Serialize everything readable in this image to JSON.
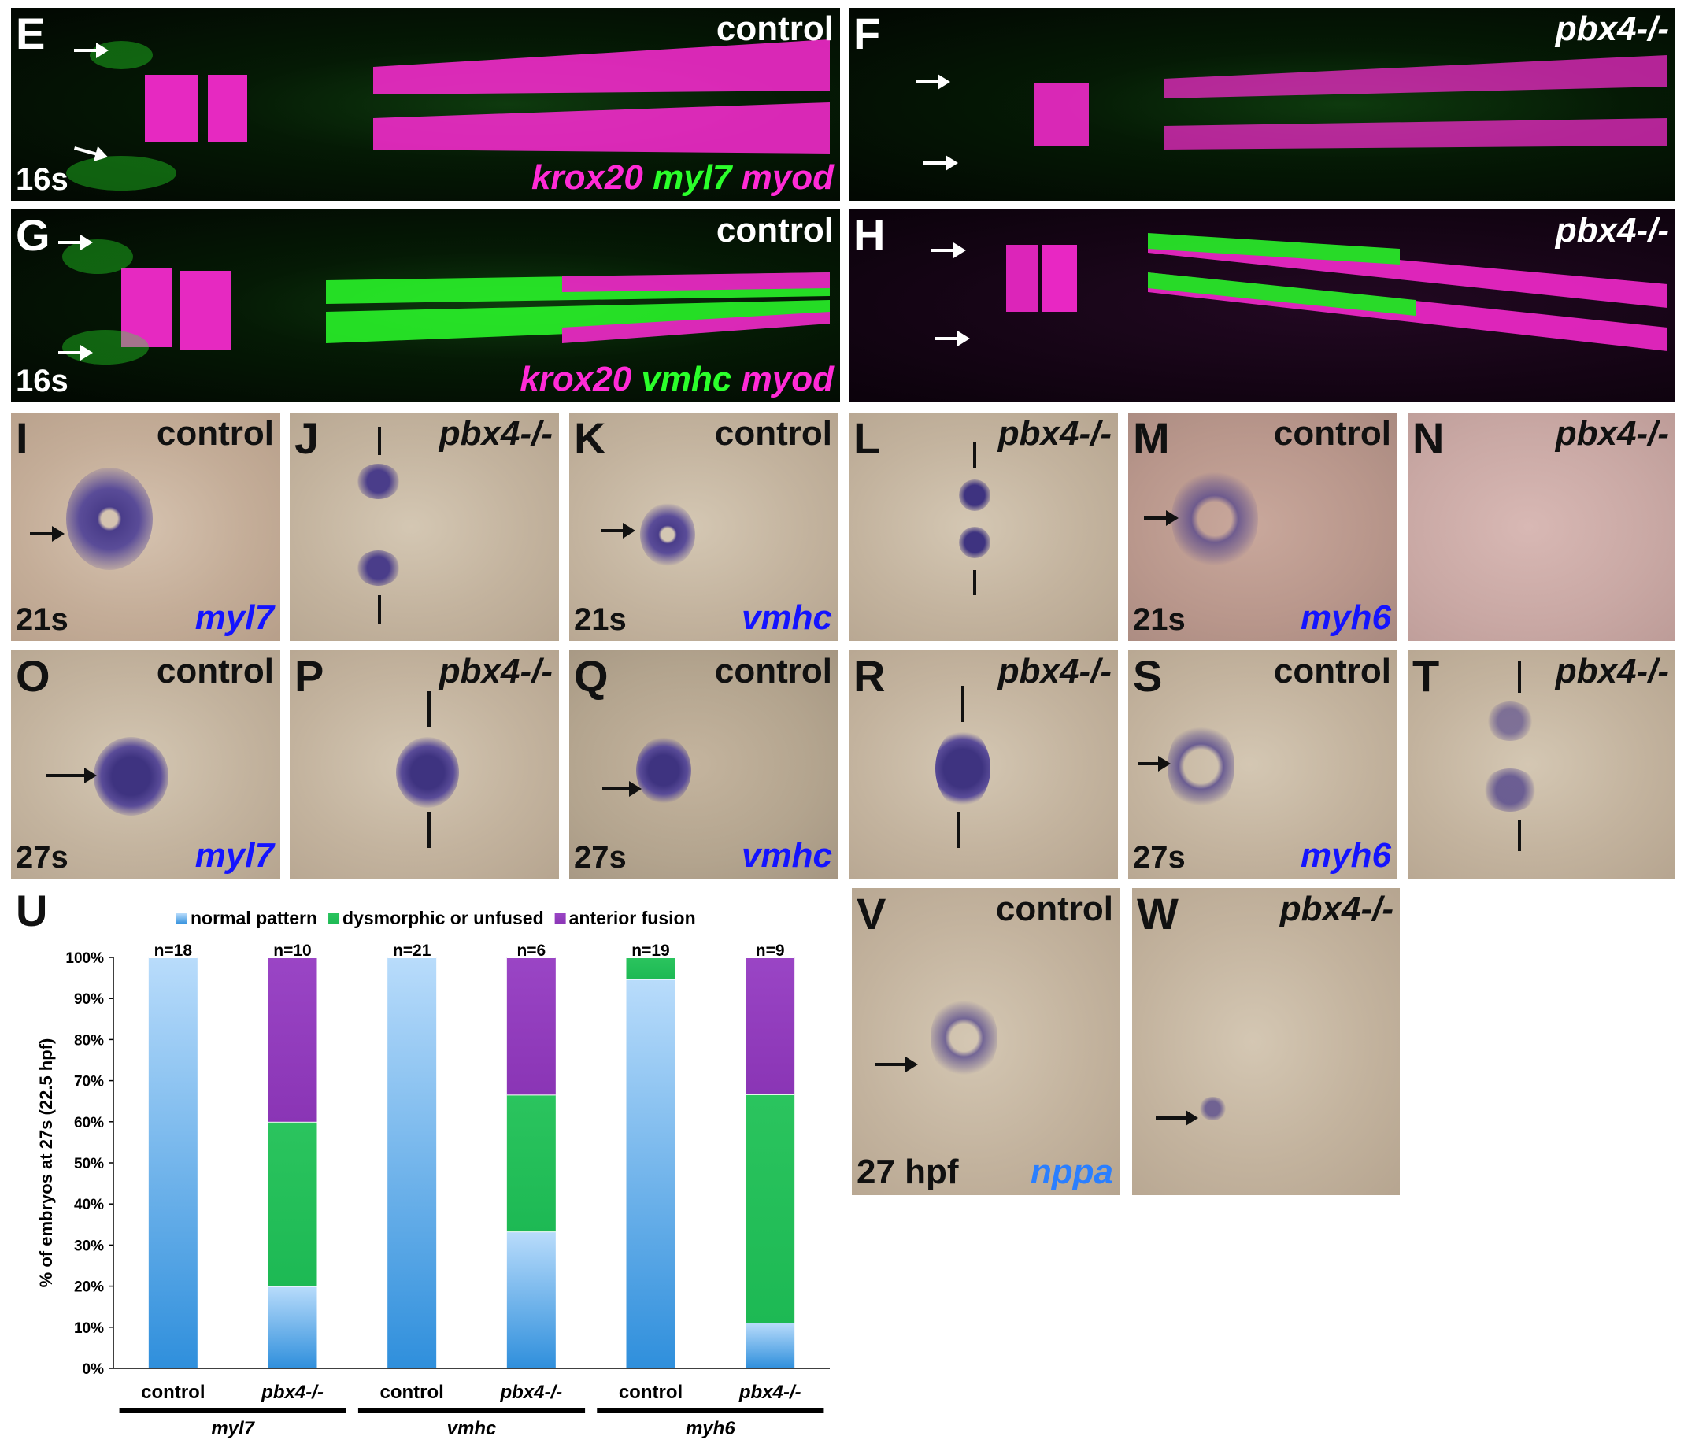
{
  "panels": {
    "E": {
      "letter": "E",
      "condition": "control",
      "stage": "16s",
      "genes": [
        "krox20",
        "myl7",
        "myod"
      ],
      "gene_colors": [
        "#ff2bd6",
        "#2bff2b",
        "#ff2bd6"
      ]
    },
    "F": {
      "letter": "F",
      "condition": "pbx4-/-"
    },
    "G": {
      "letter": "G",
      "condition": "control",
      "stage": "16s",
      "genes": [
        "krox20",
        "vmhc",
        "myod"
      ],
      "gene_colors": [
        "#ff2bd6",
        "#2bff2b",
        "#ff2bd6"
      ]
    },
    "H": {
      "letter": "H",
      "condition": "pbx4-/-"
    },
    "I": {
      "letter": "I",
      "condition": "control",
      "stage": "21s",
      "gene": "myl7"
    },
    "J": {
      "letter": "J",
      "condition": "pbx4-/-"
    },
    "K": {
      "letter": "K",
      "condition": "control",
      "stage": "21s",
      "gene": "vmhc"
    },
    "L": {
      "letter": "L",
      "condition": "pbx4-/-"
    },
    "M": {
      "letter": "M",
      "condition": "control",
      "stage": "21s",
      "gene": "myh6"
    },
    "N": {
      "letter": "N",
      "condition": "pbx4-/-"
    },
    "O": {
      "letter": "O",
      "condition": "control",
      "stage": "27s",
      "gene": "myl7"
    },
    "P": {
      "letter": "P",
      "condition": "pbx4-/-"
    },
    "Q": {
      "letter": "Q",
      "condition": "control",
      "stage": "27s",
      "gene": "vmhc"
    },
    "R": {
      "letter": "R",
      "condition": "pbx4-/-"
    },
    "S": {
      "letter": "S",
      "condition": "control",
      "stage": "27s",
      "gene": "myh6"
    },
    "T": {
      "letter": "T",
      "condition": "pbx4-/-"
    },
    "U": {
      "letter": "U"
    },
    "V": {
      "letter": "V",
      "condition": "control",
      "stage": "27 hpf",
      "gene": "nppa"
    },
    "W": {
      "letter": "W",
      "condition": "pbx4-/-"
    }
  },
  "chart_data": {
    "type": "bar",
    "stacked": true,
    "ylabel": "% of embryos at 27s (22.5 hpf)",
    "ylim": [
      0,
      100
    ],
    "yticks": [
      "0%",
      "10%",
      "20%",
      "30%",
      "40%",
      "50%",
      "60%",
      "70%",
      "80%",
      "90%",
      "100%"
    ],
    "categories": [
      "control",
      "pbx4-/-",
      "control",
      "pbx4-/-",
      "control",
      "pbx4-/-"
    ],
    "n_labels": [
      "n=18",
      "n=10",
      "n=21",
      "n=6",
      "n=19",
      "n=9"
    ],
    "groups": [
      {
        "label": "myl7",
        "span": [
          0,
          1
        ]
      },
      {
        "label": "vmhc",
        "span": [
          2,
          3
        ]
      },
      {
        "label": "myh6",
        "span": [
          4,
          5
        ]
      }
    ],
    "series": [
      {
        "name": "normal pattern",
        "color": "#2f8fdc",
        "values": [
          100,
          20,
          100,
          33.3,
          94.7,
          11.1
        ]
      },
      {
        "name": "dysmorphic or unfused",
        "color": "#1db954",
        "values": [
          0,
          40,
          0,
          33.3,
          5.3,
          55.6
        ]
      },
      {
        "name": "anterior fusion",
        "color": "#8a35b5",
        "values": [
          0,
          40,
          0,
          33.4,
          0,
          33.3
        ]
      }
    ],
    "legend_position": "top"
  }
}
